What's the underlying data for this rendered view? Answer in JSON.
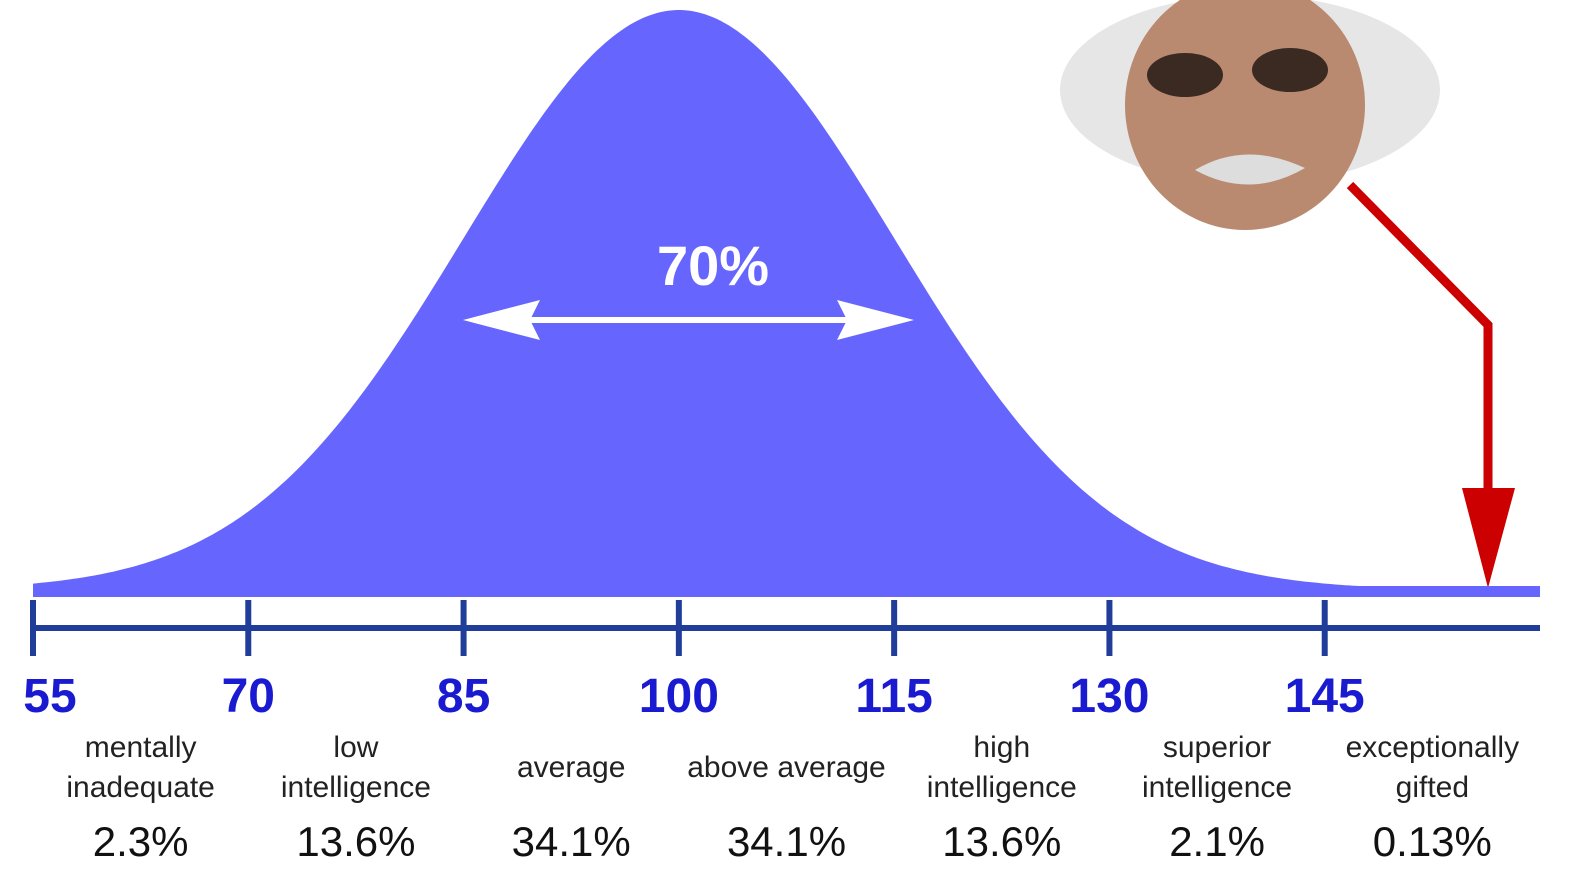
{
  "chart_data": {
    "type": "bell",
    "annotation": "70%",
    "xlim": [
      55,
      160
    ],
    "xticks": [
      55,
      70,
      85,
      100,
      115,
      130,
      145
    ],
    "categories": [
      "mentally inadequate",
      "low intelligence",
      "average",
      "above average",
      "high intelligence",
      "superior intelligence",
      "exceptionally gifted"
    ],
    "values": [
      2.3,
      13.6,
      34.1,
      34.1,
      13.6,
      2.1,
      0.13
    ],
    "value_labels": [
      "2.3%",
      "13.6%",
      "34.1%",
      "34.1%",
      "13.6%",
      "2.1%",
      "0.13%"
    ],
    "color": "#6666ff"
  }
}
